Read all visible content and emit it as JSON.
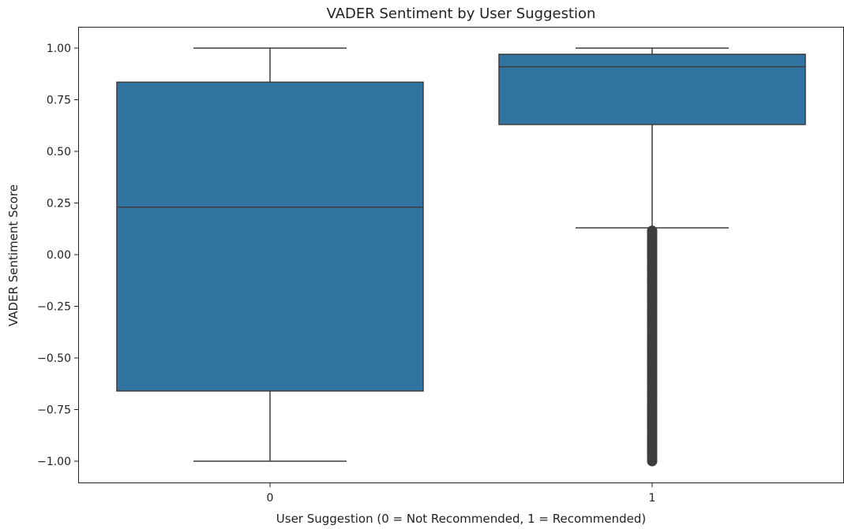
{
  "chart_data": {
    "type": "box",
    "title": "VADER Sentiment by User Suggestion",
    "xlabel": "User Suggestion (0 = Not Recommended, 1 = Recommended)",
    "ylabel": "VADER Sentiment Score",
    "categories": [
      "0",
      "1"
    ],
    "ylim": [
      -1.1,
      1.1
    ],
    "yticks": [
      1.0,
      0.75,
      0.5,
      0.25,
      0.0,
      -0.25,
      -0.5,
      -0.75,
      -1.0
    ],
    "ytick_labels": [
      "1.00",
      "0.75",
      "0.50",
      "0.25",
      "0.00",
      "−0.25",
      "−0.50",
      "−0.75",
      "−1.00"
    ],
    "boxes": [
      {
        "category": "0",
        "whisker_low": -1.0,
        "q1": -0.66,
        "median": 0.23,
        "q3": 0.835,
        "whisker_high": 1.0,
        "outliers_range": null
      },
      {
        "category": "1",
        "whisker_low": 0.13,
        "q1": 0.63,
        "median": 0.91,
        "q3": 0.97,
        "whisker_high": 1.0,
        "outliers_range": [
          -1.0,
          0.12
        ]
      }
    ],
    "box_color": "#3274a1",
    "line_color": "#3d3d3d",
    "grid": false
  }
}
